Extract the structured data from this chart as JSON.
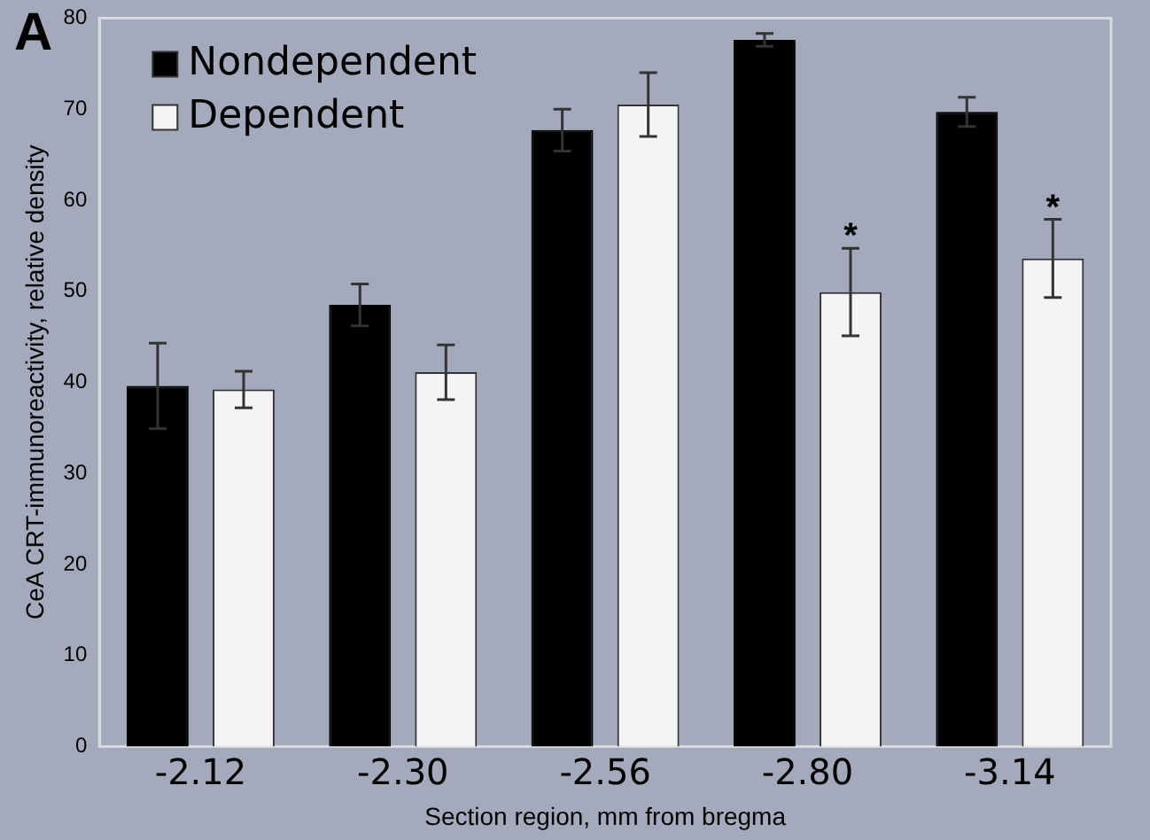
{
  "chart_data": {
    "type": "bar",
    "xlabel": "Section region, mm from bregma",
    "ylabel": "CeA CRT-immunoreactivity, relative density",
    "categories": [
      "-2.12",
      "-2.30",
      "-2.56",
      "-2.80",
      "-3.14"
    ],
    "series": [
      {
        "name": "Nondependent",
        "color": "#000000",
        "values": [
          39.6,
          48.5,
          67.7,
          77.6,
          69.7
        ],
        "errors": [
          4.7,
          2.3,
          2.3,
          0.7,
          1.6
        ]
      },
      {
        "name": "Dependent",
        "color": "#f4f4f4",
        "values": [
          39.2,
          41.1,
          70.5,
          49.9,
          53.6
        ],
        "errors": [
          2,
          3,
          3.5,
          4.8,
          4.3
        ]
      }
    ],
    "ylim": [
      0,
      80
    ],
    "yticks": [
      0,
      10,
      20,
      30,
      40,
      50,
      60,
      70,
      80
    ],
    "grid": false,
    "legend": "top left",
    "annotations": [
      "A",
      "*",
      "*"
    ]
  }
}
